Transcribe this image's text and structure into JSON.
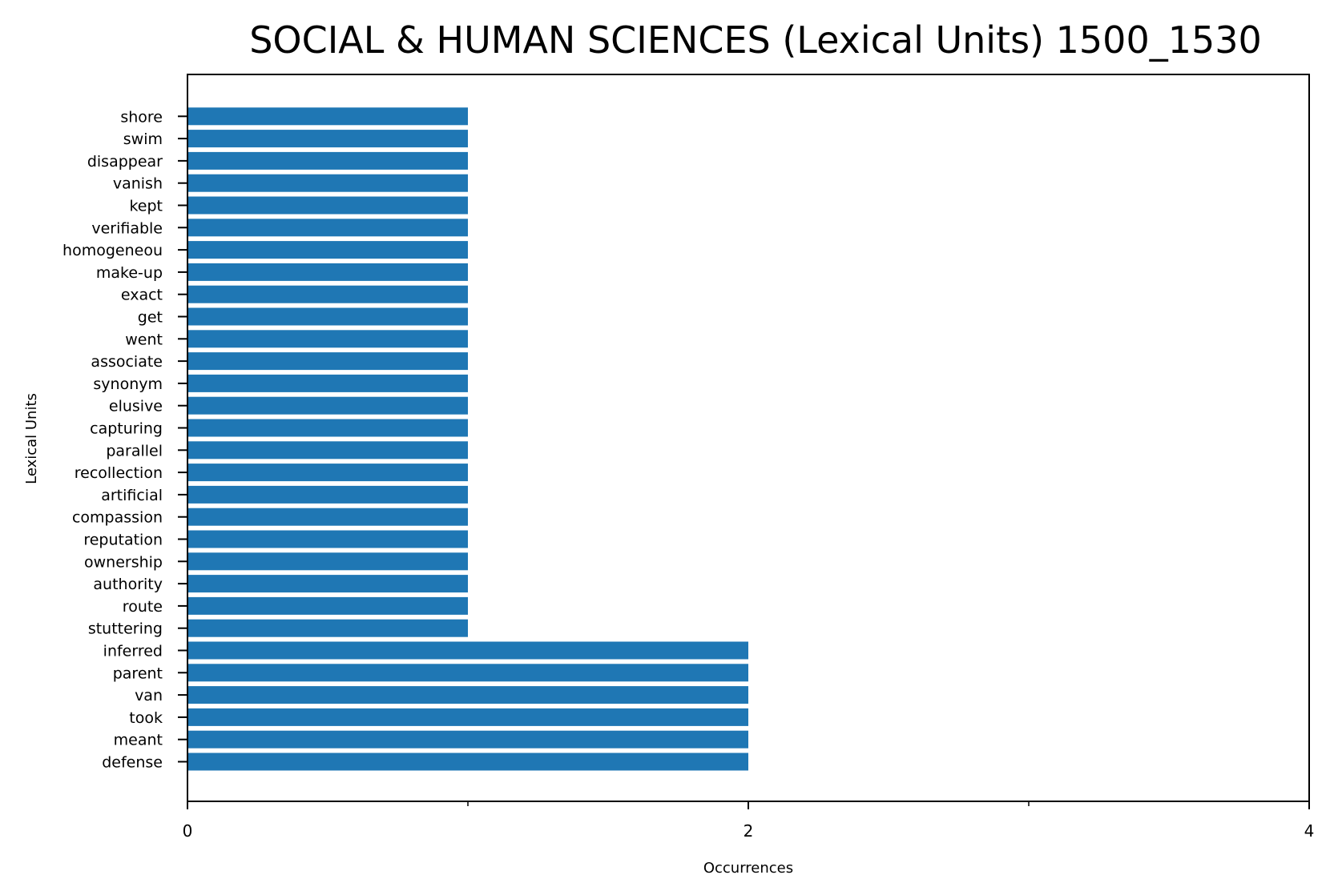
{
  "chart_data": {
    "type": "bar",
    "orientation": "horizontal",
    "title": "SOCIAL & HUMAN SCIENCES (Lexical Units) 1500_1530",
    "xlabel": "Occurrences",
    "ylabel": "Lexical Units",
    "xlim": [
      0,
      4
    ],
    "x_ticks": [
      0,
      2,
      4
    ],
    "x_tick_labels": [
      "0",
      "2",
      "4"
    ],
    "x_minor_ticks": [
      1,
      3
    ],
    "grid": false,
    "bar_color": "#1f77b4",
    "categories": [
      "defense",
      "meant",
      "took",
      "van",
      "parent",
      "inferred",
      "stuttering",
      "route",
      "authority",
      "ownership",
      "reputation",
      "compassion",
      "artificial",
      "recollection",
      "parallel",
      "capturing",
      "elusive",
      "synonym",
      "associate",
      "went",
      "get",
      "exact",
      "make-up",
      "homogeneou",
      "verifiable",
      "kept",
      "vanish",
      "disappear",
      "swim",
      "shore"
    ],
    "values": [
      2,
      2,
      2,
      2,
      2,
      2,
      1,
      1,
      1,
      1,
      1,
      1,
      1,
      1,
      1,
      1,
      1,
      1,
      1,
      1,
      1,
      1,
      1,
      1,
      1,
      1,
      1,
      1,
      1,
      1
    ]
  }
}
